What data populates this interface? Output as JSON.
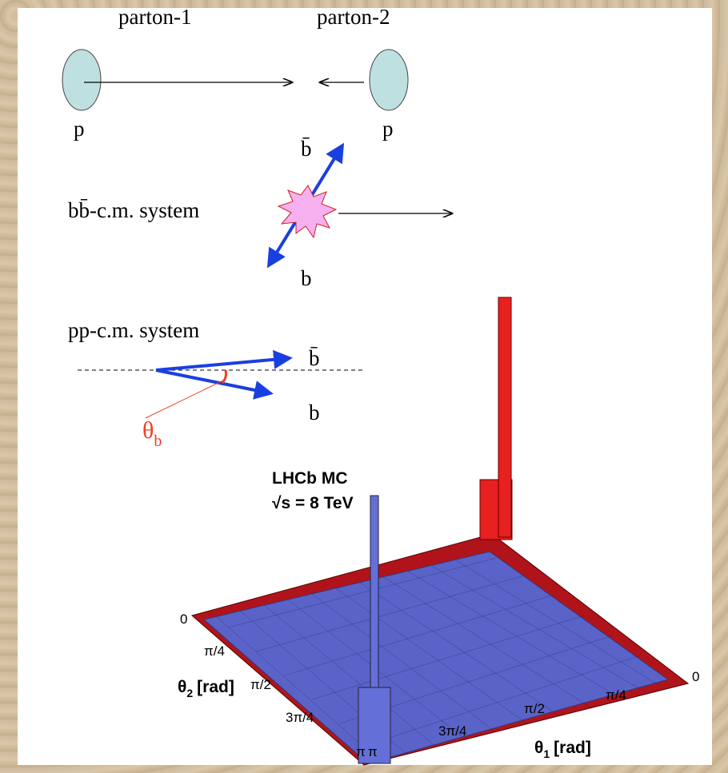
{
  "diagram": {
    "initial_state": {
      "parton_1": "parton-1",
      "parton_2": "parton-2",
      "proton_left": "p",
      "proton_right": "p"
    },
    "bb_frame": {
      "label": "bb̄-c.m. system",
      "antiquark": "b̄",
      "quark": "b"
    },
    "pp_frame": {
      "label": "pp-c.m. system",
      "antiquark": "b̄",
      "quark": "b",
      "angle": {
        "symbol": "θ",
        "subscript": "b"
      }
    },
    "histogram": {
      "title": "LHCb MC",
      "energy": "√s = 8 TeV",
      "theta2_axis": {
        "symbol": "θ",
        "subscript": "2",
        "unit": "[rad]",
        "ticks": [
          "0",
          "π/4",
          "π/2",
          "3π/4",
          "π"
        ]
      },
      "theta1_axis": {
        "symbol": "θ",
        "subscript": "1",
        "unit": "[rad]",
        "ticks": [
          "π",
          "3π/4",
          "π/2",
          "π/4",
          "0"
        ]
      }
    }
  }
}
